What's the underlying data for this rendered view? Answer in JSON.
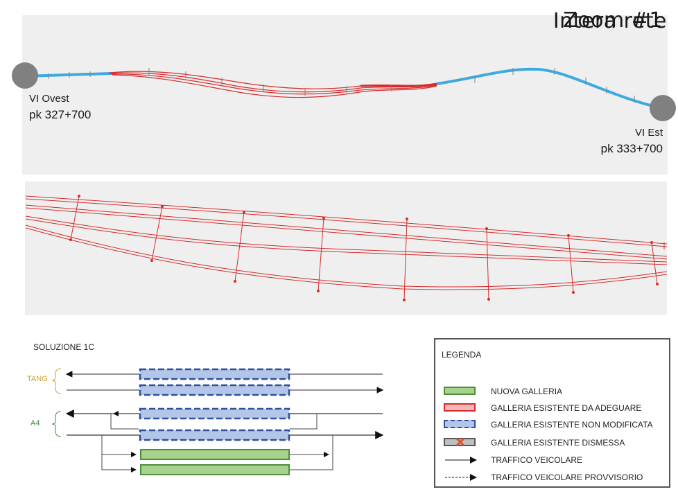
{
  "network": {
    "title": "Intera rete",
    "west_endpoint": {
      "name": "VI Ovest",
      "pk": "pk 327+700"
    },
    "east_endpoint": {
      "name": "VI Est",
      "pk": "pk 333+700"
    }
  },
  "zoom": {
    "title": "Zoom #1"
  },
  "scheme": {
    "title": "SOLUZIONE 1C",
    "groups": [
      {
        "label": "TANG"
      },
      {
        "label": "A4"
      }
    ]
  },
  "legend": {
    "title": "LEGENDA",
    "items": [
      {
        "label": "NUOVA GALLERIA",
        "style": "green-box"
      },
      {
        "label": "GALLERIA ESISTENTE DA ADEGUARE",
        "style": "red-box"
      },
      {
        "label": "GALLERIA ESISTENTE NON MODIFICATA",
        "style": "blue-dashed-box"
      },
      {
        "label": "GALLERIA ESISTENTE DISMESSA",
        "style": "grey-crossed-box"
      },
      {
        "label": "TRAFFICO VEICOLARE",
        "style": "solid-arrow"
      },
      {
        "label": "TRAFFICO VEICOLARE PROVVISORIO",
        "style": "dashed-arrow"
      }
    ]
  },
  "colors": {
    "existing_road": "#3fa9df",
    "tunnel_to_upgrade": "#d62b2b",
    "new_tunnel": "#a6d28d",
    "new_tunnel_border": "#4e8f3a",
    "unchanged_tunnel": "#b4c6e7",
    "unchanged_tunnel_border": "#2f4f9f",
    "decommissioned_tunnel": "#bfbfbf",
    "endpoint_marker": "#808080"
  }
}
